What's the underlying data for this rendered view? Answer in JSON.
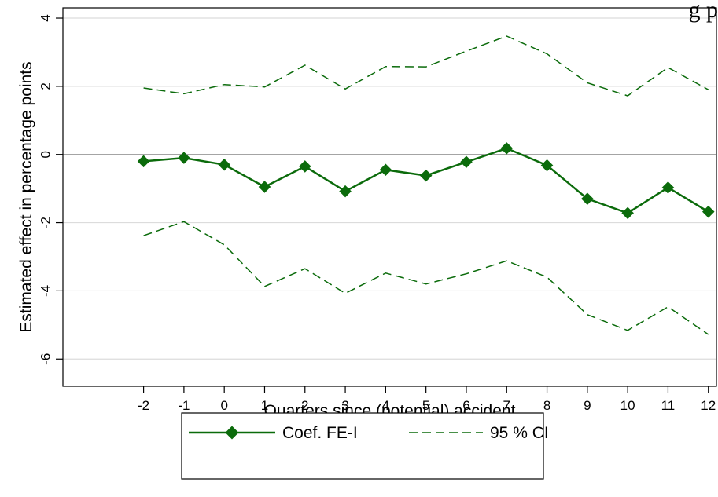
{
  "chart_data": {
    "type": "line",
    "title": "",
    "corner_fragment": "g p",
    "xlabel": "Quarters since (potential) accident",
    "ylabel": "Estimated effect in percentage points",
    "x": [
      -2,
      -1,
      0,
      1,
      2,
      3,
      4,
      5,
      6,
      7,
      8,
      9,
      10,
      11,
      12
    ],
    "xlim": [
      -4,
      12.2
    ],
    "ylim": [
      -6.8,
      4.3
    ],
    "x_ticks": [
      -2,
      -1,
      0,
      1,
      2,
      3,
      4,
      5,
      6,
      7,
      8,
      9,
      10,
      11,
      12
    ],
    "x_tick_labels": [
      "-2",
      "-1",
      "0",
      "1",
      "2",
      "3",
      "4",
      "5",
      "6",
      "7",
      "8",
      "9",
      "10",
      "11",
      "12"
    ],
    "y_ticks": [
      -6,
      -4,
      -2,
      0,
      2,
      4
    ],
    "y_tick_labels": [
      "-6",
      "-4",
      "-2",
      "0",
      "2",
      "4"
    ],
    "grid": true,
    "zero_line": true,
    "legend_position": "bottom",
    "series": [
      {
        "name": "Coef. FE-I",
        "style": "solid-diamond",
        "color": "#0b6b0b",
        "values": [
          -0.2,
          -0.1,
          -0.3,
          -0.95,
          -0.35,
          -1.08,
          -0.45,
          -0.62,
          -0.22,
          0.18,
          -0.32,
          -1.3,
          -1.72,
          -0.97,
          -1.68
        ]
      },
      {
        "name": "95 % CI",
        "style": "dashed",
        "color": "#0b6b0b",
        "values": [
          1.95,
          1.78,
          2.05,
          1.98,
          2.62,
          1.92,
          2.58,
          2.57,
          3.03,
          3.47,
          2.95,
          2.1,
          1.72,
          2.55,
          1.9
        ]
      },
      {
        "name": "",
        "style": "dashed",
        "color": "#0b6b0b",
        "values": [
          -2.38,
          -1.97,
          -2.65,
          -3.87,
          -3.35,
          -4.07,
          -3.48,
          -3.8,
          -3.5,
          -3.12,
          -3.6,
          -4.7,
          -5.16,
          -4.47,
          -5.28
        ]
      }
    ]
  }
}
